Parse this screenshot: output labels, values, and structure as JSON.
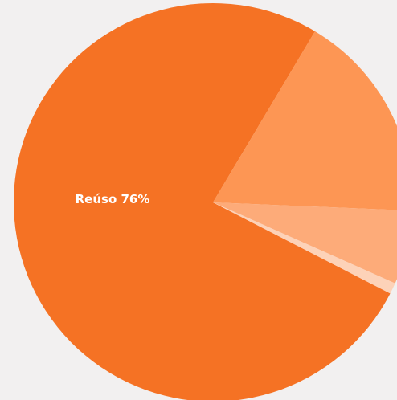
{
  "chart_data": {
    "type": "pie",
    "categories": [
      "Reúso",
      null,
      null,
      null
    ],
    "values": [
      76,
      17.1,
      6,
      0.9
    ],
    "value_labels": [
      "76%",
      null,
      null,
      null
    ],
    "colors": [
      "#f57224",
      "#fd9654",
      "#fdab79",
      "#fdd2b8"
    ]
  }
}
